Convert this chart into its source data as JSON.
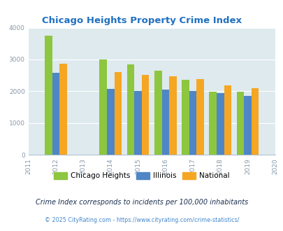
{
  "title": "Chicago Heights Property Crime Index",
  "years": [
    2012,
    2014,
    2015,
    2016,
    2017,
    2018,
    2019
  ],
  "chicago_heights": [
    3750,
    3010,
    2840,
    2650,
    2360,
    1980,
    1985
  ],
  "illinois": [
    2590,
    2080,
    2000,
    2060,
    2010,
    1945,
    1860
  ],
  "national": [
    2870,
    2610,
    2510,
    2460,
    2390,
    2180,
    2100
  ],
  "color_chicago": "#8dc63f",
  "color_illinois": "#4f86c6",
  "color_national": "#f5a623",
  "xlim": [
    2011,
    2020
  ],
  "ylim": [
    0,
    4000
  ],
  "yticks": [
    0,
    1000,
    2000,
    3000,
    4000
  ],
  "xticks": [
    2011,
    2012,
    2013,
    2014,
    2015,
    2016,
    2017,
    2018,
    2019,
    2020
  ],
  "background_color": "#deeaee",
  "title_color": "#2070c0",
  "tick_color": "#8899aa",
  "legend_labels": [
    "Chicago Heights",
    "Illinois",
    "National"
  ],
  "footnote1": "Crime Index corresponds to incidents per 100,000 inhabitants",
  "footnote2": "© 2025 CityRating.com - https://www.cityrating.com/crime-statistics/",
  "footnote1_color": "#1a3050",
  "footnote2_color": "#4488cc",
  "bar_width": 0.27
}
